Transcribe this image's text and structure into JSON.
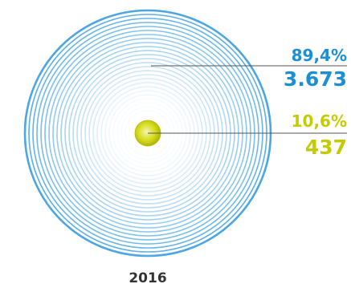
{
  "chart_data": {
    "type": "pie",
    "year": "2016",
    "slices": [
      {
        "percent_label": "89,4%",
        "count_label": "3.673",
        "value": 3673,
        "percent": 89.4,
        "color": "#3f9fe0"
      },
      {
        "percent_label": "10,6%",
        "count_label": "437",
        "value": 437,
        "percent": 10.6,
        "color": "#c4cc00"
      }
    ],
    "colors": {
      "outer_ring": "#5aaee6",
      "inner_ball": "#d6dc1e",
      "leader_line": "#555555",
      "year_text": "#333333"
    }
  }
}
